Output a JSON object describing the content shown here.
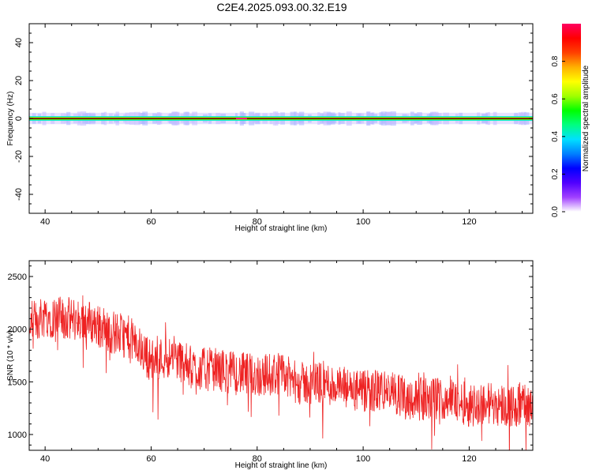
{
  "title": "C2E4.2025.093.00.32.E19",
  "chart_data": [
    {
      "type": "heatmap",
      "xlabel": "Height of straight line (km)",
      "ylabel": "Frequency (Hz)",
      "xlim": [
        37,
        132
      ],
      "ylim": [
        -50,
        50
      ],
      "xticks": [
        40,
        60,
        80,
        100,
        120
      ],
      "yticks": [
        40,
        20,
        0,
        -20,
        -40
      ],
      "band_frequency": 0,
      "band_halfwidth_hz": 1.2,
      "noise_halfwidth_hz": 3,
      "colorbar": {
        "label": "Normalized spectral amplitude",
        "range": [
          0,
          1
        ],
        "ticks": [
          "0.0",
          "0.2",
          "0.4",
          "0.6",
          "0.8"
        ],
        "colors": [
          "#ffffff",
          "#a040ff",
          "#5000ff",
          "#0000ff",
          "#0080ff",
          "#00e0ff",
          "#00ff80",
          "#00ff00",
          "#a0ff00",
          "#ffff00",
          "#ffb000",
          "#ff4000",
          "#ff0000",
          "#ff0060"
        ]
      }
    },
    {
      "type": "line",
      "xlabel": "Height of straight line (km)",
      "ylabel": "SNR (10 * v/v)",
      "xlim": [
        37,
        132
      ],
      "ylim": [
        850,
        2650
      ],
      "xticks": [
        40,
        60,
        80,
        100,
        120
      ],
      "yticks": [
        1000,
        1500,
        2000,
        2500
      ],
      "color": "#ee2222",
      "trend": [
        {
          "x": 37,
          "y": 2050
        },
        {
          "x": 40,
          "y": 2130
        },
        {
          "x": 44,
          "y": 2100
        },
        {
          "x": 48,
          "y": 2080
        },
        {
          "x": 52,
          "y": 1980
        },
        {
          "x": 56,
          "y": 1920
        },
        {
          "x": 60,
          "y": 1700
        },
        {
          "x": 64,
          "y": 1750
        },
        {
          "x": 68,
          "y": 1620
        },
        {
          "x": 72,
          "y": 1620
        },
        {
          "x": 76,
          "y": 1580
        },
        {
          "x": 80,
          "y": 1560
        },
        {
          "x": 84,
          "y": 1580
        },
        {
          "x": 88,
          "y": 1480
        },
        {
          "x": 92,
          "y": 1500
        },
        {
          "x": 96,
          "y": 1440
        },
        {
          "x": 100,
          "y": 1400
        },
        {
          "x": 104,
          "y": 1420
        },
        {
          "x": 108,
          "y": 1350
        },
        {
          "x": 112,
          "y": 1330
        },
        {
          "x": 116,
          "y": 1350
        },
        {
          "x": 120,
          "y": 1280
        },
        {
          "x": 124,
          "y": 1300
        },
        {
          "x": 128,
          "y": 1270
        },
        {
          "x": 132,
          "y": 1280
        }
      ],
      "noise_amplitude": 260
    }
  ]
}
